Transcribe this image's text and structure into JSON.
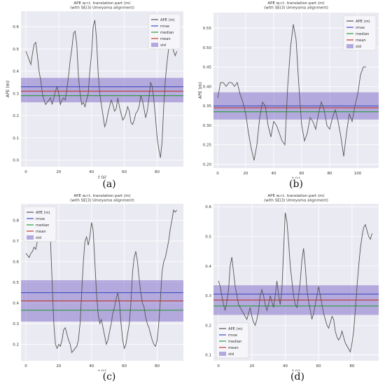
{
  "figure": {
    "captions": [
      "(a)",
      "(b)",
      "(c)",
      "(d)"
    ]
  },
  "colors": {
    "ape": "#555555",
    "rmse": "#3b4cc0",
    "median": "#2a9d3a",
    "mean": "#c0392b",
    "std_band": "#7b68c8",
    "plot_bg": "#eaeaf2"
  },
  "chart_data": [
    {
      "type": "line",
      "title": "APE w.r.t. translation part (m)",
      "subtitle": "(with SE(3) Umeyama alignment)",
      "xlabel": "t (s)",
      "ylabel": "APE (m)",
      "xlim": [
        -3,
        96
      ],
      "ylim": [
        -0.03,
        0.67
      ],
      "xticks": [
        0,
        20,
        40,
        60,
        80
      ],
      "yticks": [
        0.0,
        0.1,
        0.2,
        0.3,
        0.4,
        0.5,
        0.6
      ],
      "ytick_labels": [
        "0.0",
        "0.1",
        "0.2",
        "0.3",
        "0.4",
        "0.5",
        "0.6"
      ],
      "legend_position": "top-right",
      "legend": [
        "APE (m)",
        "rmse",
        "median",
        "mean",
        "std"
      ],
      "stats": {
        "rmse": 0.33,
        "median": 0.29,
        "mean": 0.31,
        "std_low": 0.26,
        "std_high": 0.37
      },
      "series": [
        {
          "name": "APE (m)",
          "x": [
            0,
            1,
            2,
            3,
            4,
            5,
            6,
            7,
            8,
            9,
            10,
            11,
            12,
            13,
            14,
            15,
            16,
            17,
            18,
            19,
            20,
            21,
            22,
            23,
            24,
            25,
            26,
            27,
            28,
            29,
            30,
            31,
            32,
            33,
            34,
            35,
            36,
            37,
            38,
            39,
            40,
            41,
            42,
            43,
            44,
            45,
            46,
            47,
            48,
            49,
            50,
            51,
            52,
            53,
            54,
            55,
            56,
            57,
            58,
            59,
            60,
            61,
            62,
            63,
            64,
            65,
            66,
            67,
            68,
            69,
            70,
            71,
            72,
            73,
            74,
            75,
            76,
            77,
            78,
            79,
            80,
            81,
            82,
            83,
            84,
            85,
            86,
            87,
            88,
            89,
            90,
            91,
            92
          ],
          "y": [
            0.49,
            0.47,
            0.45,
            0.43,
            0.48,
            0.52,
            0.53,
            0.47,
            0.4,
            0.36,
            0.3,
            0.27,
            0.25,
            0.26,
            0.27,
            0.28,
            0.25,
            0.28,
            0.31,
            0.33,
            0.3,
            0.25,
            0.27,
            0.28,
            0.27,
            0.32,
            0.38,
            0.45,
            0.5,
            0.57,
            0.58,
            0.52,
            0.38,
            0.3,
            0.25,
            0.26,
            0.24,
            0.27,
            0.3,
            0.4,
            0.48,
            0.6,
            0.63,
            0.55,
            0.4,
            0.3,
            0.25,
            0.2,
            0.15,
            0.17,
            0.21,
            0.24,
            0.27,
            0.25,
            0.22,
            0.23,
            0.28,
            0.24,
            0.21,
            0.18,
            0.19,
            0.21,
            0.24,
            0.22,
            0.17,
            0.16,
            0.18,
            0.21,
            0.22,
            0.24,
            0.29,
            0.27,
            0.23,
            0.19,
            0.22,
            0.28,
            0.35,
            0.33,
            0.27,
            0.19,
            0.1,
            0.05,
            0.01,
            0.08,
            0.24,
            0.36,
            0.44,
            0.5,
            0.55,
            0.53,
            0.49,
            0.47,
            0.49
          ]
        }
      ]
    },
    {
      "type": "line",
      "title": "APE w.r.t. translation part (m)",
      "subtitle": "(with SE(3) Umeyama alignment)",
      "xlabel": "t (s)",
      "ylabel": "APE (m)",
      "xlim": [
        -3,
        115
      ],
      "ylim": [
        0.19,
        0.59
      ],
      "xticks": [
        0,
        20,
        40,
        60,
        80,
        100
      ],
      "yticks": [
        0.2,
        0.25,
        0.3,
        0.35,
        0.4,
        0.45,
        0.5,
        0.55
      ],
      "ytick_labels": [
        "0.20",
        "0.25",
        "0.30",
        "0.35",
        "0.40",
        "0.45",
        "0.50",
        "0.55"
      ],
      "legend_position": "top-right",
      "legend": [
        "APE (m)",
        "rmse",
        "median",
        "mean",
        "std"
      ],
      "stats": {
        "rmse": 0.35,
        "median": 0.335,
        "mean": 0.345,
        "std_low": 0.315,
        "std_high": 0.385
      },
      "series": [
        {
          "name": "APE (m)",
          "x": [
            0,
            2,
            4,
            6,
            8,
            10,
            12,
            14,
            16,
            18,
            20,
            22,
            24,
            26,
            28,
            30,
            32,
            34,
            36,
            38,
            40,
            42,
            44,
            46,
            48,
            50,
            52,
            54,
            56,
            58,
            60,
            62,
            64,
            66,
            68,
            70,
            72,
            74,
            76,
            78,
            80,
            82,
            84,
            86,
            88,
            90,
            92,
            94,
            96,
            98,
            100,
            102,
            104,
            106
          ],
          "y": [
            0.37,
            0.41,
            0.41,
            0.4,
            0.41,
            0.41,
            0.4,
            0.41,
            0.38,
            0.36,
            0.33,
            0.28,
            0.24,
            0.21,
            0.25,
            0.32,
            0.36,
            0.35,
            0.3,
            0.27,
            0.31,
            0.3,
            0.28,
            0.26,
            0.25,
            0.4,
            0.5,
            0.56,
            0.52,
            0.4,
            0.3,
            0.26,
            0.28,
            0.32,
            0.31,
            0.29,
            0.33,
            0.36,
            0.34,
            0.3,
            0.29,
            0.32,
            0.34,
            0.31,
            0.27,
            0.22,
            0.28,
            0.33,
            0.31,
            0.35,
            0.38,
            0.43,
            0.45,
            0.45
          ]
        }
      ]
    },
    {
      "type": "line",
      "title": "APE w.r.t. translation part (m)",
      "subtitle": "(with SE(3) Umeyama alignment)",
      "xlabel": "t (s)",
      "ylabel": "",
      "xlim": [
        -3,
        96
      ],
      "ylim": [
        0.12,
        0.88
      ],
      "xticks": [
        0,
        20,
        40,
        60,
        80
      ],
      "yticks": [
        0.2,
        0.3,
        0.4,
        0.5,
        0.6,
        0.7,
        0.8
      ],
      "ytick_labels": [
        "0.2",
        "0.3",
        "0.4",
        "0.5",
        "0.6",
        "0.7",
        "0.8"
      ],
      "legend_position": "top-left",
      "legend": [
        "APE (m)",
        "rmse",
        "median",
        "mean",
        "std"
      ],
      "stats": {
        "rmse": 0.45,
        "median": 0.365,
        "mean": 0.41,
        "std_low": 0.31,
        "std_high": 0.51
      },
      "series": [
        {
          "name": "APE (m)",
          "x": [
            0,
            1,
            2,
            3,
            4,
            5,
            6,
            7,
            8,
            9,
            10,
            11,
            12,
            13,
            14,
            15,
            16,
            17,
            18,
            19,
            20,
            21,
            22,
            23,
            24,
            25,
            26,
            27,
            28,
            29,
            30,
            31,
            32,
            33,
            34,
            35,
            36,
            37,
            38,
            39,
            40,
            41,
            42,
            43,
            44,
            45,
            46,
            47,
            48,
            49,
            50,
            51,
            52,
            53,
            54,
            55,
            56,
            57,
            58,
            59,
            60,
            61,
            62,
            63,
            64,
            65,
            66,
            67,
            68,
            69,
            70,
            71,
            72,
            73,
            74,
            75,
            76,
            77,
            78,
            79,
            80,
            81,
            82,
            83,
            84,
            85,
            86,
            87,
            88,
            89,
            90,
            91,
            92
          ],
          "y": [
            0.64,
            0.63,
            0.62,
            0.64,
            0.65,
            0.67,
            0.66,
            0.7,
            0.74,
            0.72,
            0.7,
            0.73,
            0.76,
            0.8,
            0.81,
            0.7,
            0.5,
            0.3,
            0.2,
            0.18,
            0.2,
            0.19,
            0.22,
            0.27,
            0.28,
            0.25,
            0.22,
            0.2,
            0.16,
            0.17,
            0.18,
            0.19,
            0.22,
            0.3,
            0.45,
            0.6,
            0.7,
            0.72,
            0.68,
            0.72,
            0.79,
            0.75,
            0.6,
            0.45,
            0.35,
            0.3,
            0.32,
            0.28,
            0.24,
            0.2,
            0.22,
            0.26,
            0.3,
            0.35,
            0.38,
            0.42,
            0.45,
            0.4,
            0.3,
            0.22,
            0.18,
            0.2,
            0.25,
            0.3,
            0.4,
            0.55,
            0.62,
            0.65,
            0.6,
            0.52,
            0.45,
            0.4,
            0.38,
            0.33,
            0.3,
            0.28,
            0.25,
            0.22,
            0.2,
            0.19,
            0.22,
            0.3,
            0.42,
            0.55,
            0.6,
            0.62,
            0.66,
            0.7,
            0.76,
            0.8,
            0.85,
            0.84,
            0.85
          ]
        }
      ]
    },
    {
      "type": "line",
      "title": "APE w.r.t. translation part (m)",
      "subtitle": "(with SE(3) Umeyama alignment)",
      "xlabel": "t (s)",
      "ylabel": "",
      "xlim": [
        -3,
        96
      ],
      "ylim": [
        0.08,
        0.61
      ],
      "xticks": [
        0,
        20,
        40,
        60,
        80
      ],
      "yticks": [
        0.1,
        0.2,
        0.3,
        0.4,
        0.5,
        0.6
      ],
      "ytick_labels": [
        "0.1",
        "0.2",
        "0.3",
        "0.4",
        "0.5",
        "0.6"
      ],
      "legend_position": "bottom-left",
      "legend": [
        "APE (m)",
        "rmse",
        "median",
        "mean",
        "std"
      ],
      "stats": {
        "rmse": 0.305,
        "median": 0.265,
        "mean": 0.285,
        "std_low": 0.235,
        "std_high": 0.335
      },
      "series": [
        {
          "name": "APE (m)",
          "x": [
            0,
            1,
            2,
            3,
            4,
            5,
            6,
            7,
            8,
            9,
            10,
            11,
            12,
            13,
            14,
            15,
            16,
            17,
            18,
            19,
            20,
            21,
            22,
            23,
            24,
            25,
            26,
            27,
            28,
            29,
            30,
            31,
            32,
            33,
            34,
            35,
            36,
            37,
            38,
            39,
            40,
            41,
            42,
            43,
            44,
            45,
            46,
            47,
            48,
            49,
            50,
            51,
            52,
            53,
            54,
            55,
            56,
            57,
            58,
            59,
            60,
            61,
            62,
            63,
            64,
            65,
            66,
            67,
            68,
            69,
            70,
            71,
            72,
            73,
            74,
            75,
            76,
            77,
            78,
            79,
            80,
            81,
            82,
            83,
            84,
            85,
            86,
            87,
            88,
            89,
            90,
            91,
            92
          ],
          "y": [
            0.35,
            0.33,
            0.3,
            0.27,
            0.25,
            0.28,
            0.32,
            0.4,
            0.43,
            0.38,
            0.33,
            0.3,
            0.27,
            0.26,
            0.25,
            0.24,
            0.23,
            0.22,
            0.24,
            0.26,
            0.23,
            0.21,
            0.2,
            0.22,
            0.25,
            0.3,
            0.32,
            0.3,
            0.27,
            0.25,
            0.27,
            0.3,
            0.28,
            0.26,
            0.3,
            0.35,
            0.3,
            0.27,
            0.32,
            0.45,
            0.58,
            0.55,
            0.48,
            0.4,
            0.35,
            0.3,
            0.27,
            0.26,
            0.3,
            0.35,
            0.42,
            0.46,
            0.4,
            0.32,
            0.28,
            0.25,
            0.22,
            0.24,
            0.27,
            0.3,
            0.33,
            0.3,
            0.27,
            0.24,
            0.22,
            0.2,
            0.19,
            0.21,
            0.23,
            0.22,
            0.18,
            0.16,
            0.15,
            0.16,
            0.18,
            0.16,
            0.14,
            0.13,
            0.12,
            0.11,
            0.14,
            0.18,
            0.25,
            0.33,
            0.4,
            0.46,
            0.5,
            0.53,
            0.54,
            0.52,
            0.5,
            0.49,
            0.51
          ]
        }
      ]
    }
  ]
}
